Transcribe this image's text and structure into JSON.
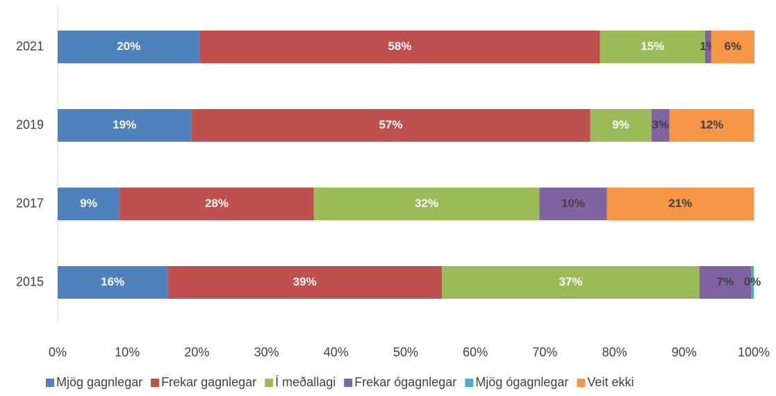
{
  "chart_data": {
    "type": "stacked_barh",
    "categories": [
      "2021",
      "2019",
      "2017",
      "2015"
    ],
    "series": [
      {
        "name": "Mjög gagnlegar",
        "color": "#4f81bd",
        "label_color": "#ffffff",
        "values": [
          20.4,
          19.2,
          8.9,
          15.8
        ],
        "value_labels": [
          "20%",
          "19%",
          "9%",
          "16%"
        ]
      },
      {
        "name": "Frekar gagnlegar",
        "color": "#c0504d",
        "label_color": "#ffffff",
        "values": [
          57.5,
          57.3,
          27.9,
          39.4
        ],
        "value_labels": [
          "58%",
          "57%",
          "28%",
          "39%"
        ]
      },
      {
        "name": "Í meðallagi",
        "color": "#9bbb59",
        "label_color": "#ffffff",
        "values": [
          15.1,
          8.8,
          32.4,
          37.0
        ],
        "value_labels": [
          "15%",
          "9%",
          "32%",
          "37%"
        ]
      },
      {
        "name": "Frekar ógagnlegar",
        "color": "#8064a2",
        "label_color": "#404040",
        "values": [
          0.9,
          2.6,
          9.7,
          7.4
        ],
        "value_labels": [
          "1%",
          "3%",
          "10%",
          "7%"
        ]
      },
      {
        "name": "Mjög ógagnlegar",
        "color": "#4bacc6",
        "label_color": "#404040",
        "values": [
          0,
          0,
          0,
          0.4
        ],
        "value_labels": [
          null,
          null,
          null,
          "0%"
        ]
      },
      {
        "name": "Veit ekki",
        "color": "#f79646",
        "label_color": "#404040",
        "values": [
          6.2,
          12.1,
          21.1,
          0
        ],
        "value_labels": [
          "6%",
          "12%",
          "21%",
          null
        ]
      }
    ],
    "xlim": [
      0,
      100
    ],
    "xticks": [
      {
        "value": 0,
        "label": "0%"
      },
      {
        "value": 10,
        "label": "10%"
      },
      {
        "value": 20,
        "label": "20%"
      },
      {
        "value": 30,
        "label": "30%"
      },
      {
        "value": 40,
        "label": "40%"
      },
      {
        "value": 50,
        "label": "50%"
      },
      {
        "value": 60,
        "label": "60%"
      },
      {
        "value": 70,
        "label": "70%"
      },
      {
        "value": 80,
        "label": "80%"
      },
      {
        "value": 90,
        "label": "90%"
      },
      {
        "value": 100,
        "label": "100%"
      }
    ],
    "legend": "bottom"
  }
}
